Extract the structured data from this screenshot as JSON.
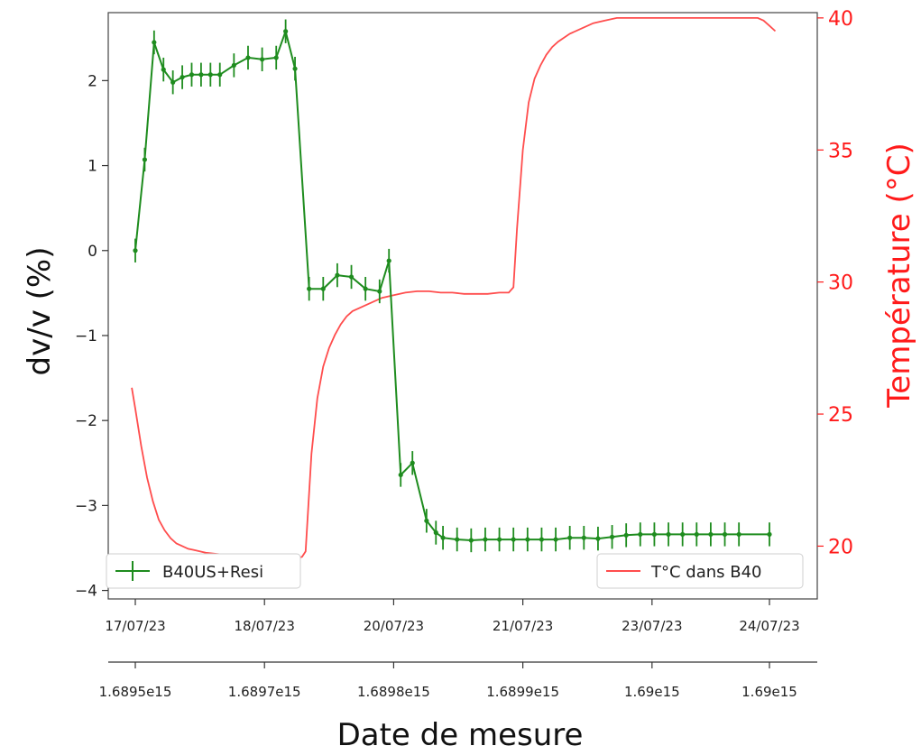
{
  "chart_data": {
    "type": "line",
    "xlabel": "Date de mesure",
    "ylabel_left": "dv/v (%)",
    "ylabel_right": "Température (°C)",
    "ylim_left": [
      -4.1,
      2.8
    ],
    "ylim_right": [
      18,
      40.2
    ],
    "yticks_left": [
      -4,
      -3,
      -2,
      -1,
      0,
      1,
      2
    ],
    "yticks_left_labels": [
      "−4",
      "−3",
      "−2",
      "−1",
      "0",
      "1",
      "2"
    ],
    "yticks_right": [
      20,
      25,
      30,
      35,
      40
    ],
    "yticks_right_labels": [
      "20",
      "25",
      "30",
      "35",
      "40"
    ],
    "xlim": [
      1689490000000000.0,
      1690030000000000.0
    ],
    "xticks_dates": [
      {
        "x": 1689490000000000.0,
        "label": "17/07/23"
      },
      {
        "x": 1689600000000000.0,
        "label": "18/07/23"
      },
      {
        "x": 1689710000000000.0,
        "label": "20/07/23"
      },
      {
        "x": 1689820000000000.0,
        "label": "21/07/23"
      },
      {
        "x": 1689930000000000.0,
        "label": "23/07/23"
      },
      {
        "x": 1690030000000000.0,
        "label": "24/07/23"
      }
    ],
    "xticks_numeric": [
      {
        "x": 1689490000000000.0,
        "label": "1.6895e15"
      },
      {
        "x": 1689600000000000.0,
        "label": "1.6897e15"
      },
      {
        "x": 1689710000000000.0,
        "label": "1.6898e15"
      },
      {
        "x": 1689820000000000.0,
        "label": "1.6899e15"
      },
      {
        "x": 1689930000000000.0,
        "label": "1.69e15"
      },
      {
        "x": 1690030000000000.0,
        "label": "1.69e15"
      }
    ],
    "legend_left": {
      "placement": "bottom-left",
      "label": "B40US+Resi"
    },
    "legend_right": {
      "placement": "bottom-right",
      "label": "T°C dans B40"
    },
    "series": [
      {
        "name": "B40US+Resi",
        "color": "#1e8c1e",
        "axis": "left",
        "x": [
          1689490000000000.0,
          1689498000000000.0,
          1689506000000000.0,
          1689514000000000.0,
          1689522000000000.0,
          1689530000000000.0,
          1689538000000000.0,
          1689546000000000.0,
          1689554000000000.0,
          1689562000000000.0,
          1689574000000000.0,
          1689586000000000.0,
          1689598000000000.0,
          1689610000000000.0,
          1689618000000000.0,
          1689626000000000.0,
          1689638000000000.0,
          1689650000000000.0,
          1689662000000000.0,
          1689674000000000.0,
          1689686000000000.0,
          1689698000000000.0,
          1689706000000000.0,
          1689716000000000.0,
          1689726000000000.0,
          1689738000000000.0,
          1689746000000000.0,
          1689752000000000.0,
          1689764000000000.0,
          1689776000000000.0,
          1689788000000000.0,
          1689800000000000.0,
          1689812000000000.0,
          1689824000000000.0,
          1689836000000000.0,
          1689848000000000.0,
          1689860000000000.0,
          1689872000000000.0,
          1689884000000000.0,
          1689896000000000.0,
          1689908000000000.0,
          1689920000000000.0,
          1689932000000000.0,
          1689944000000000.0,
          1689956000000000.0,
          1689968000000000.0,
          1689980000000000.0,
          1689992000000000.0,
          1690004000000000.0,
          1690030000000000.0
        ],
        "values": [
          0.0,
          1.07,
          2.45,
          2.13,
          1.98,
          2.04,
          2.07,
          2.07,
          2.07,
          2.07,
          2.18,
          2.27,
          2.25,
          2.27,
          2.58,
          2.14,
          -0.45,
          -0.45,
          -0.29,
          -0.31,
          -0.45,
          -0.48,
          -0.12,
          -2.64,
          -2.5,
          -3.18,
          -3.32,
          -3.38,
          -3.4,
          -3.41,
          -3.4,
          -3.4,
          -3.4,
          -3.4,
          -3.4,
          -3.4,
          -3.38,
          -3.38,
          -3.39,
          -3.37,
          -3.35,
          -3.34,
          -3.34,
          -3.34,
          -3.34,
          -3.34,
          -3.34,
          -3.34,
          -3.34,
          -3.34
        ],
        "errors": [
          0.14,
          0.14,
          0.14,
          0.14,
          0.14,
          0.14,
          0.14,
          0.14,
          0.14,
          0.14,
          0.14,
          0.14,
          0.14,
          0.14,
          0.14,
          0.14,
          0.14,
          0.14,
          0.14,
          0.14,
          0.14,
          0.14,
          0.14,
          0.14,
          0.14,
          0.14,
          0.14,
          0.14,
          0.14,
          0.14,
          0.14,
          0.14,
          0.14,
          0.14,
          0.14,
          0.14,
          0.14,
          0.14,
          0.14,
          0.14,
          0.14,
          0.14,
          0.14,
          0.14,
          0.14,
          0.14,
          0.14,
          0.14,
          0.14,
          0.14
        ]
      },
      {
        "name": "T°C dans B40",
        "color": "#ff4d4d",
        "axis": "right",
        "x": [
          1689487000000000.0,
          1689490000000000.0,
          1689495000000000.0,
          1689500000000000.0,
          1689505000000000.0,
          1689510000000000.0,
          1689515000000000.0,
          1689520000000000.0,
          1689525000000000.0,
          1689530000000000.0,
          1689535000000000.0,
          1689540000000000.0,
          1689545000000000.0,
          1689550000000000.0,
          1689560000000000.0,
          1689570000000000.0,
          1689580000000000.0,
          1689590000000000.0,
          1689600000000000.0,
          1689610000000000.0,
          1689618000000000.0,
          1689626000000000.0,
          1689632000000000.0,
          1689635000000000.0,
          1689640000000000.0,
          1689645000000000.0,
          1689650000000000.0,
          1689655000000000.0,
          1689660000000000.0,
          1689665000000000.0,
          1689670000000000.0,
          1689675000000000.0,
          1689680000000000.0,
          1689690000000000.0,
          1689700000000000.0,
          1689710000000000.0,
          1689720000000000.0,
          1689730000000000.0,
          1689740000000000.0,
          1689750000000000.0,
          1689760000000000.0,
          1689770000000000.0,
          1689780000000000.0,
          1689790000000000.0,
          1689800000000000.0,
          1689808000000000.0,
          1689812000000000.0,
          1689815000000000.0,
          1689820000000000.0,
          1689825000000000.0,
          1689830000000000.0,
          1689835000000000.0,
          1689840000000000.0,
          1689845000000000.0,
          1689850000000000.0,
          1689860000000000.0,
          1689870000000000.0,
          1689880000000000.0,
          1689890000000000.0,
          1689900000000000.0,
          1689920000000000.0,
          1689940000000000.0,
          1689960000000000.0,
          1689980000000000.0,
          1690000000000000.0,
          1690010000000000.0,
          1690020000000000.0,
          1690025000000000.0,
          1690030000000000.0,
          1690035000000000.0
        ],
        "values": [
          26.0,
          25.2,
          23.8,
          22.6,
          21.7,
          21.0,
          20.6,
          20.3,
          20.1,
          20.0,
          19.9,
          19.85,
          19.8,
          19.75,
          19.7,
          19.65,
          19.6,
          19.55,
          19.5,
          19.5,
          19.45,
          19.5,
          19.6,
          19.8,
          23.5,
          25.6,
          26.8,
          27.5,
          28.0,
          28.4,
          28.7,
          28.9,
          29.0,
          29.2,
          29.4,
          29.5,
          29.6,
          29.65,
          29.65,
          29.6,
          29.6,
          29.55,
          29.55,
          29.55,
          29.6,
          29.6,
          29.8,
          32.0,
          35.0,
          36.8,
          37.7,
          38.2,
          38.6,
          38.9,
          39.1,
          39.4,
          39.6,
          39.8,
          39.9,
          40.0,
          40.0,
          40.0,
          40.0,
          40.0,
          40.0,
          40.0,
          40.0,
          39.9,
          39.7,
          39.5
        ]
      }
    ]
  }
}
